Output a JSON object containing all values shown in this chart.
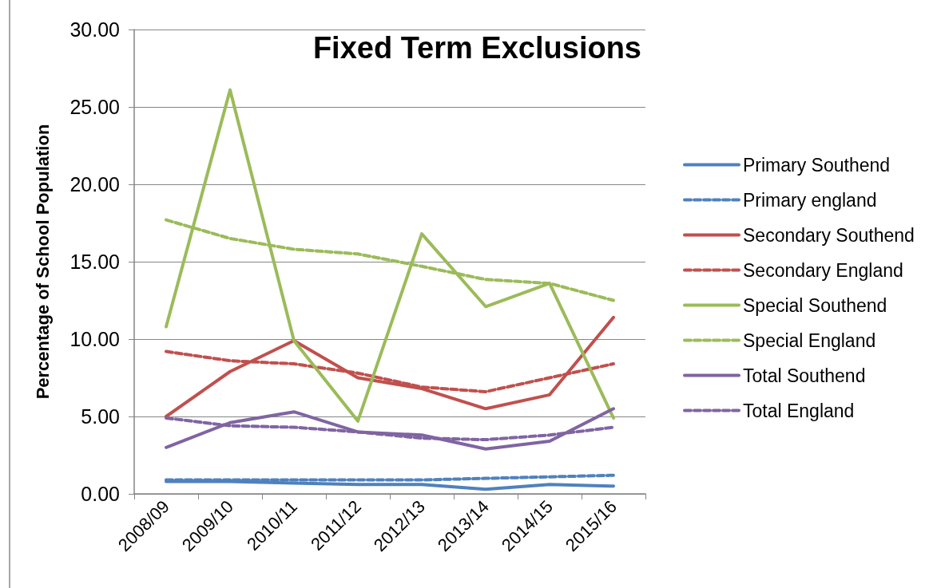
{
  "chart_data": {
    "type": "line",
    "title": "Fixed Term Exclusions",
    "ylabel": "Percentage of School Population",
    "categories": [
      "2008/09",
      "2009/10",
      "2010/11",
      "2011/12",
      "2012/13",
      "2013/14",
      "2014/15",
      "2015/16"
    ],
    "series": [
      {
        "name": "Primary Southend",
        "color": "#4f81bd",
        "line_style": "solid",
        "values": [
          0.8,
          0.8,
          0.7,
          0.6,
          0.6,
          0.3,
          0.6,
          0.5
        ]
      },
      {
        "name": "Primary england",
        "color": "#4f81bd",
        "line_style": "dashed",
        "values": [
          0.9,
          0.9,
          0.9,
          0.9,
          0.9,
          1.0,
          1.1,
          1.2
        ]
      },
      {
        "name": "Secondary Southend",
        "color": "#c0504d",
        "line_style": "solid",
        "values": [
          5.0,
          7.9,
          9.9,
          7.5,
          6.8,
          5.5,
          6.4,
          11.4
        ]
      },
      {
        "name": "Secondary England",
        "color": "#c0504d",
        "line_style": "dashed",
        "values": [
          9.2,
          8.6,
          8.4,
          7.8,
          6.9,
          6.6,
          7.5,
          8.4
        ]
      },
      {
        "name": "Special Southend",
        "color": "#9bbb59",
        "line_style": "solid",
        "values": [
          10.8,
          26.1,
          9.9,
          4.7,
          16.8,
          12.1,
          13.6,
          4.9
        ]
      },
      {
        "name": "Special England",
        "color": "#9bbb59",
        "line_style": "dashed",
        "values": [
          17.7,
          16.5,
          15.8,
          15.5,
          14.7,
          13.85,
          13.6,
          12.5
        ]
      },
      {
        "name": "Total Southend",
        "color": "#8064a2",
        "line_style": "solid",
        "values": [
          3.0,
          4.6,
          5.3,
          4.0,
          3.8,
          2.9,
          3.4,
          5.5
        ]
      },
      {
        "name": "Total England",
        "color": "#8064a2",
        "line_style": "dashed",
        "values": [
          4.9,
          4.4,
          4.3,
          4.0,
          3.6,
          3.5,
          3.8,
          4.3
        ]
      }
    ],
    "ylim": [
      0,
      30
    ],
    "yticks": [
      {
        "value": 0,
        "label": "0.00"
      },
      {
        "value": 5,
        "label": "5.00"
      },
      {
        "value": 10,
        "label": "10.00"
      },
      {
        "value": 15,
        "label": "15.00"
      },
      {
        "value": 20,
        "label": "20.00"
      },
      {
        "value": 25,
        "label": "25.00"
      },
      {
        "value": 30,
        "label": "30.00"
      }
    ],
    "grid": "y",
    "legend": "right",
    "marker": "none"
  }
}
